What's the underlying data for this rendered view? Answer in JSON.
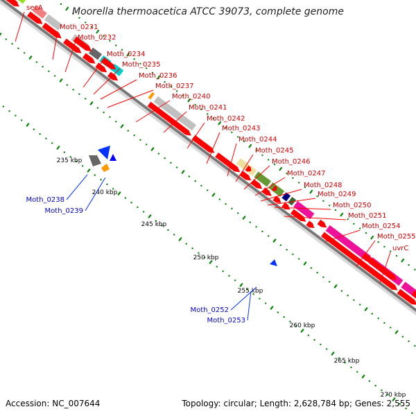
{
  "title": "Moorella thermoacetica ATCC 39073, complete genome",
  "footer": {
    "accession": "Accession: NC_007644",
    "topology": "Topology: circular; Length: 2,628,784 bp; Genes: 2,555"
  },
  "colors": {
    "forward_cds": "#ff0000",
    "reverse_cds": "#0033ff",
    "label_forward": "#cc0000",
    "label_reverse": "#0000cc",
    "tick": "#008000",
    "backbone": "#777777"
  },
  "scale_labels": [
    "235 kbp",
    "240 kbp",
    "245 kbp",
    "250 kbp",
    "255 kbp",
    "260 kbp",
    "265 kbp",
    "270 kbp"
  ],
  "gene_labels_forward": [
    "secA",
    "Moth_0231",
    "Moth_0232",
    "Moth_0234",
    "Moth_0235",
    "Moth_0236",
    "Moth_0237",
    "Moth_0240",
    "Moth_0241",
    "Moth_0242",
    "Moth_0243",
    "Moth_0244",
    "Moth_0245",
    "Moth_0246",
    "Moth_0247",
    "Moth_0248",
    "Moth_0249",
    "Moth_0250",
    "Moth_0251",
    "Moth_0254",
    "Moth_0255",
    "uvrC"
  ],
  "gene_labels_reverse": [
    "Moth_0238",
    "Moth_0239",
    "Moth_0252",
    "Moth_0253"
  ]
}
